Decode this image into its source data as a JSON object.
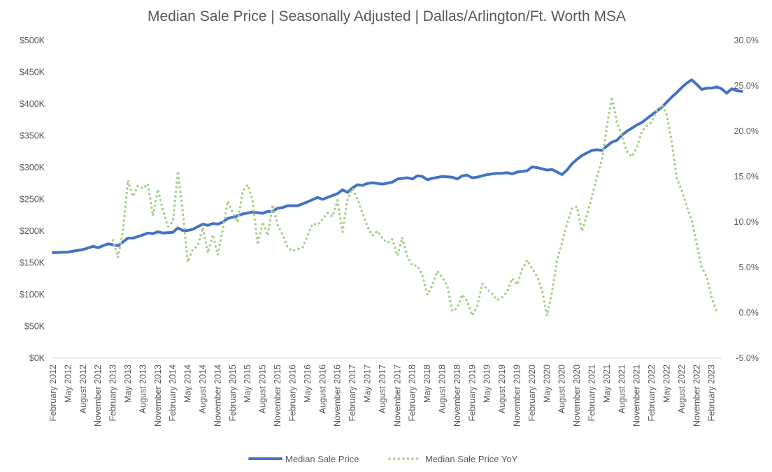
{
  "chart_data": {
    "type": "line",
    "title": "Median Sale Price | Seasonally Adjusted | Dallas/Arlington/Ft. Worth MSA",
    "xlabel": "",
    "ylabel": "",
    "y_left": {
      "range": [
        0,
        500000
      ],
      "tick_values": [
        0,
        50000,
        100000,
        150000,
        200000,
        250000,
        300000,
        350000,
        400000,
        450000,
        500000
      ],
      "tick_labels": [
        "$0K",
        "$50K",
        "$100K",
        "$150K",
        "$200K",
        "$250K",
        "$300K",
        "$350K",
        "$400K",
        "$450K",
        "$500K"
      ]
    },
    "y_right": {
      "range": [
        -5.0,
        30.0
      ],
      "tick_values": [
        -5,
        0,
        5,
        10,
        15,
        20,
        25,
        30
      ],
      "tick_labels": [
        "-5.0%",
        "0.0%",
        "5.0%",
        "10.0%",
        "15.0%",
        "20.0%",
        "25.0%",
        "30.0%"
      ]
    },
    "x_range": [
      "2012-02",
      "2023-04"
    ],
    "x_tick_labels": [
      "February 2012",
      "May 2012",
      "August 2012",
      "November 2012",
      "February 2013",
      "May 2013",
      "August 2013",
      "November 2013",
      "February 2014",
      "May 2014",
      "August 2014",
      "November 2014",
      "February 2015",
      "May 2015",
      "August 2015",
      "November 2015",
      "February 2016",
      "May 2016",
      "August 2016",
      "November 2016",
      "February 2017",
      "May 2017",
      "August 2017",
      "November 2017",
      "February 2018",
      "May 2018",
      "August 2018",
      "November 2018",
      "February 2019",
      "May 2019",
      "August 2019",
      "November 2019",
      "February 2020",
      "May 2020",
      "August 2020",
      "November 2020",
      "February 2021",
      "May 2021",
      "August 2021",
      "November 2021",
      "February 2022",
      "May 2022",
      "August 2022",
      "November 2022",
      "February 2023"
    ],
    "grid": false,
    "legend_position": "bottom",
    "series": [
      {
        "name": "Median Sale Price",
        "axis": "left",
        "style": "solid",
        "color": "#4472C4",
        "points": [
          [
            "2012-02",
            166000
          ],
          [
            "2012-05",
            167000
          ],
          [
            "2012-08",
            171000
          ],
          [
            "2012-10",
            176000
          ],
          [
            "2012-11",
            174000
          ],
          [
            "2013-01",
            180000
          ],
          [
            "2013-03",
            177000
          ],
          [
            "2013-04",
            183000
          ],
          [
            "2013-05",
            189000
          ],
          [
            "2013-06",
            189000
          ],
          [
            "2013-08",
            194000
          ],
          [
            "2013-09",
            197000
          ],
          [
            "2013-10",
            196000
          ],
          [
            "2013-11",
            199000
          ],
          [
            "2013-12",
            197000
          ],
          [
            "2014-02",
            198000
          ],
          [
            "2014-03",
            205000
          ],
          [
            "2014-04",
            201000
          ],
          [
            "2014-05",
            201000
          ],
          [
            "2014-06",
            203000
          ],
          [
            "2014-08",
            211000
          ],
          [
            "2014-09",
            209000
          ],
          [
            "2014-10",
            212000
          ],
          [
            "2014-11",
            211000
          ],
          [
            "2014-12",
            214000
          ],
          [
            "2015-01",
            220000
          ],
          [
            "2015-03",
            224000
          ],
          [
            "2015-04",
            227000
          ],
          [
            "2015-06",
            230000
          ],
          [
            "2015-08",
            228000
          ],
          [
            "2015-09",
            231000
          ],
          [
            "2015-10",
            231000
          ],
          [
            "2015-11",
            236000
          ],
          [
            "2015-12",
            237000
          ],
          [
            "2016-01",
            240000
          ],
          [
            "2016-03",
            240000
          ],
          [
            "2016-05",
            246000
          ],
          [
            "2016-07",
            253000
          ],
          [
            "2016-08",
            250000
          ],
          [
            "2016-10",
            256000
          ],
          [
            "2016-11",
            259000
          ],
          [
            "2016-12",
            265000
          ],
          [
            "2017-01",
            261000
          ],
          [
            "2017-02",
            268000
          ],
          [
            "2017-03",
            273000
          ],
          [
            "2017-04",
            272000
          ],
          [
            "2017-05",
            275000
          ],
          [
            "2017-06",
            276000
          ],
          [
            "2017-08",
            274000
          ],
          [
            "2017-10",
            277000
          ],
          [
            "2017-11",
            282000
          ],
          [
            "2018-01",
            284000
          ],
          [
            "2018-02",
            282000
          ],
          [
            "2018-03",
            287000
          ],
          [
            "2018-04",
            286000
          ],
          [
            "2018-05",
            281000
          ],
          [
            "2018-06",
            283000
          ],
          [
            "2018-08",
            286000
          ],
          [
            "2018-10",
            285000
          ],
          [
            "2018-11",
            282000
          ],
          [
            "2018-12",
            287000
          ],
          [
            "2019-01",
            288000
          ],
          [
            "2019-02",
            284000
          ],
          [
            "2019-03",
            285000
          ],
          [
            "2019-05",
            289000
          ],
          [
            "2019-07",
            291000
          ],
          [
            "2019-08",
            291000
          ],
          [
            "2019-09",
            292000
          ],
          [
            "2019-10",
            290000
          ],
          [
            "2019-11",
            293000
          ],
          [
            "2020-01",
            295000
          ],
          [
            "2020-02",
            301000
          ],
          [
            "2020-03",
            300000
          ],
          [
            "2020-05",
            296000
          ],
          [
            "2020-06",
            297000
          ],
          [
            "2020-08",
            289000
          ],
          [
            "2020-09",
            296000
          ],
          [
            "2020-10",
            306000
          ],
          [
            "2020-11",
            313000
          ],
          [
            "2020-12",
            319000
          ],
          [
            "2021-02",
            327000
          ],
          [
            "2021-03",
            328000
          ],
          [
            "2021-04",
            327000
          ],
          [
            "2021-05",
            334000
          ],
          [
            "2021-06",
            340000
          ],
          [
            "2021-07",
            343000
          ],
          [
            "2021-08",
            351000
          ],
          [
            "2021-09",
            357000
          ],
          [
            "2021-10",
            362000
          ],
          [
            "2021-11",
            367000
          ],
          [
            "2021-12",
            371000
          ],
          [
            "2022-01",
            377000
          ],
          [
            "2022-02",
            383000
          ],
          [
            "2022-03",
            389000
          ],
          [
            "2022-04",
            395000
          ],
          [
            "2022-05",
            403000
          ],
          [
            "2022-06",
            411000
          ],
          [
            "2022-07",
            418000
          ],
          [
            "2022-08",
            426000
          ],
          [
            "2022-09",
            433000
          ],
          [
            "2022-10",
            438000
          ],
          [
            "2022-11",
            431000
          ],
          [
            "2022-12",
            423000
          ],
          [
            "2023-01",
            425000
          ],
          [
            "2023-02",
            425000
          ],
          [
            "2023-03",
            427000
          ],
          [
            "2023-04",
            424000
          ],
          [
            "2023-05",
            417000
          ],
          [
            "2023-06",
            424000
          ],
          [
            "2023-07",
            421000
          ],
          [
            "2023-08",
            420000
          ]
        ]
      },
      {
        "name": "Median Sale Price YoY",
        "axis": "right",
        "style": "dotted",
        "color": "#A9D18E",
        "points": [
          [
            "2013-02",
            8.0
          ],
          [
            "2013-03",
            6.1
          ],
          [
            "2013-04",
            9.0
          ],
          [
            "2013-05",
            14.6
          ],
          [
            "2013-06",
            12.8
          ],
          [
            "2013-07",
            14.0
          ],
          [
            "2013-08",
            13.7
          ],
          [
            "2013-09",
            14.2
          ],
          [
            "2013-10",
            10.7
          ],
          [
            "2013-11",
            13.6
          ],
          [
            "2013-12",
            11.3
          ],
          [
            "2014-01",
            9.5
          ],
          [
            "2014-02",
            10.0
          ],
          [
            "2014-03",
            15.6
          ],
          [
            "2014-04",
            11.0
          ],
          [
            "2014-05",
            5.6
          ],
          [
            "2014-06",
            7.0
          ],
          [
            "2014-07",
            7.4
          ],
          [
            "2014-08",
            9.4
          ],
          [
            "2014-09",
            6.6
          ],
          [
            "2014-10",
            8.6
          ],
          [
            "2014-11",
            6.4
          ],
          [
            "2014-12",
            9.2
          ],
          [
            "2015-01",
            12.3
          ],
          [
            "2015-02",
            11.0
          ],
          [
            "2015-03",
            10.0
          ],
          [
            "2015-04",
            13.4
          ],
          [
            "2015-05",
            14.1
          ],
          [
            "2015-06",
            12.3
          ],
          [
            "2015-07",
            7.5
          ],
          [
            "2015-08",
            10.0
          ],
          [
            "2015-09",
            8.5
          ],
          [
            "2015-10",
            11.9
          ],
          [
            "2015-11",
            9.7
          ],
          [
            "2015-12",
            8.6
          ],
          [
            "2016-01",
            7.2
          ],
          [
            "2016-02",
            6.8
          ],
          [
            "2016-03",
            7.0
          ],
          [
            "2016-04",
            7.2
          ],
          [
            "2016-05",
            8.5
          ],
          [
            "2016-06",
            9.8
          ],
          [
            "2016-07",
            9.7
          ],
          [
            "2016-08",
            10.3
          ],
          [
            "2016-09",
            11.0
          ],
          [
            "2016-10",
            10.6
          ],
          [
            "2016-11",
            12.4
          ],
          [
            "2016-12",
            8.9
          ],
          [
            "2017-01",
            12.5
          ],
          [
            "2017-02",
            13.7
          ],
          [
            "2017-03",
            12.5
          ],
          [
            "2017-04",
            11.0
          ],
          [
            "2017-05",
            9.5
          ],
          [
            "2017-06",
            8.5
          ],
          [
            "2017-07",
            9.0
          ],
          [
            "2017-08",
            8.2
          ],
          [
            "2017-09",
            7.7
          ],
          [
            "2017-10",
            8.1
          ],
          [
            "2017-11",
            6.3
          ],
          [
            "2017-12",
            8.3
          ],
          [
            "2018-01",
            6.2
          ],
          [
            "2018-02",
            5.2
          ],
          [
            "2018-03",
            5.2
          ],
          [
            "2018-04",
            4.2
          ],
          [
            "2018-05",
            2.0
          ],
          [
            "2018-06",
            3.0
          ],
          [
            "2018-07",
            4.6
          ],
          [
            "2018-08",
            3.9
          ],
          [
            "2018-09",
            3.0
          ],
          [
            "2018-10",
            0.2
          ],
          [
            "2018-11",
            0.5
          ],
          [
            "2018-12",
            2.0
          ],
          [
            "2019-01",
            1.3
          ],
          [
            "2019-02",
            -0.3
          ],
          [
            "2019-03",
            0.7
          ],
          [
            "2019-04",
            3.2
          ],
          [
            "2019-05",
            2.6
          ],
          [
            "2019-06",
            2.1
          ],
          [
            "2019-07",
            1.4
          ],
          [
            "2019-08",
            1.7
          ],
          [
            "2019-09",
            2.3
          ],
          [
            "2019-10",
            3.8
          ],
          [
            "2019-11",
            3.1
          ],
          [
            "2019-12",
            4.8
          ],
          [
            "2020-01",
            5.8
          ],
          [
            "2020-02",
            4.9
          ],
          [
            "2020-03",
            4.0
          ],
          [
            "2020-04",
            2.5
          ],
          [
            "2020-05",
            -0.3
          ],
          [
            "2020-06",
            2.3
          ],
          [
            "2020-07",
            5.8
          ],
          [
            "2020-08",
            7.7
          ],
          [
            "2020-09",
            9.8
          ],
          [
            "2020-10",
            11.5
          ],
          [
            "2020-11",
            11.7
          ],
          [
            "2020-12",
            9.0
          ],
          [
            "2021-01",
            10.8
          ],
          [
            "2021-02",
            12.8
          ],
          [
            "2021-03",
            15.0
          ],
          [
            "2021-04",
            16.8
          ],
          [
            "2021-05",
            20.6
          ],
          [
            "2021-06",
            23.8
          ],
          [
            "2021-07",
            21.0
          ],
          [
            "2021-08",
            19.5
          ],
          [
            "2021-09",
            17.8
          ],
          [
            "2021-10",
            17.2
          ],
          [
            "2021-11",
            18.2
          ],
          [
            "2021-12",
            20.0
          ],
          [
            "2022-01",
            20.6
          ],
          [
            "2022-02",
            21.0
          ],
          [
            "2022-03",
            22.3
          ],
          [
            "2022-04",
            22.9
          ],
          [
            "2022-05",
            21.8
          ],
          [
            "2022-06",
            18.8
          ],
          [
            "2022-07",
            14.8
          ],
          [
            "2022-08",
            13.5
          ],
          [
            "2022-09",
            11.7
          ],
          [
            "2022-10",
            10.2
          ],
          [
            "2022-11",
            7.6
          ],
          [
            "2022-12",
            5.0
          ],
          [
            "2023-01",
            4.0
          ],
          [
            "2023-02",
            1.7
          ],
          [
            "2023-03",
            0.1
          ]
        ]
      }
    ]
  }
}
